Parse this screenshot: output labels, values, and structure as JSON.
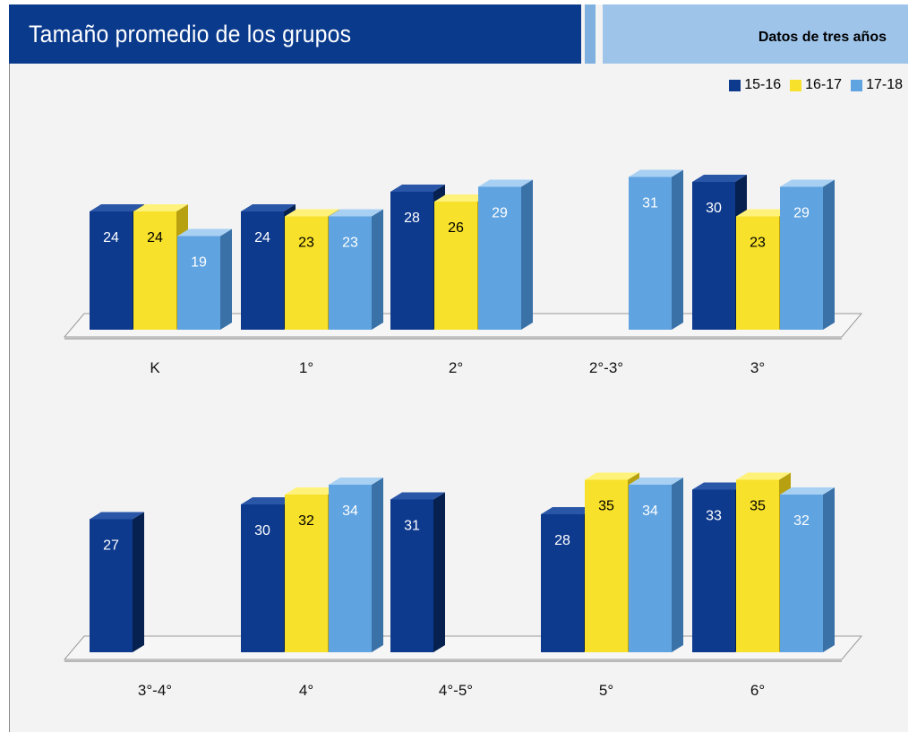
{
  "header": {
    "title": "Tamaño promedio de los grupos",
    "subtitle": "Datos de tres años"
  },
  "colors": {
    "series_15_16": "#0e3a8e",
    "series_16_17": "#f7e12a",
    "series_17_18": "#5fa3e0"
  },
  "chart_data": [
    {
      "type": "bar",
      "categories": [
        "K",
        "1°",
        "2°",
        "2°-3°",
        "3°"
      ],
      "series": [
        {
          "name": "15-16",
          "values": [
            24,
            24,
            28,
            null,
            30
          ]
        },
        {
          "name": "16-17",
          "values": [
            24,
            23,
            26,
            null,
            23
          ]
        },
        {
          "name": "17-18",
          "values": [
            19,
            23,
            29,
            31,
            29
          ]
        }
      ],
      "legend": "top-right",
      "grid": false
    },
    {
      "type": "bar",
      "categories": [
        "3°-4°",
        "4°",
        "4°-5°",
        "5°",
        "6°"
      ],
      "series": [
        {
          "name": "15-16",
          "values": [
            27,
            30,
            31,
            28,
            33
          ]
        },
        {
          "name": "16-17",
          "values": [
            null,
            32,
            null,
            35,
            35
          ]
        },
        {
          "name": "17-18",
          "values": [
            null,
            34,
            null,
            34,
            32
          ]
        }
      ],
      "legend": "top-right",
      "grid": false
    }
  ]
}
